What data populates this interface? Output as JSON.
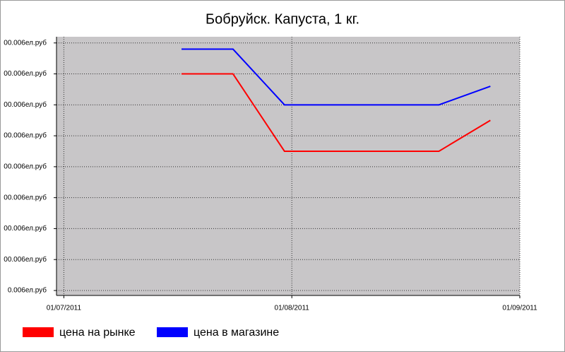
{
  "chart_data": {
    "type": "line",
    "title": "Бобруйск. Капуста, 1 кг.",
    "x": [
      "17/07/2011",
      "24/07/2011",
      "31/07/2011",
      "07/08/2011",
      "14/08/2011",
      "21/08/2011",
      "28/08/2011"
    ],
    "series": [
      {
        "name": "цена на рынке",
        "color": "#ff0000",
        "values": [
          7,
          7,
          4.5,
          4.5,
          4.5,
          4.5,
          5.5
        ]
      },
      {
        "name": "цена в магазине",
        "color": "#0000ff",
        "values": [
          7.8,
          7.8,
          6,
          6,
          6,
          6,
          6.6
        ]
      }
    ],
    "xlim": [
      "30/06/2011",
      "01/09/2011"
    ],
    "xticks": [
      "01/07/2011",
      "01/08/2011",
      "01/09/2011"
    ],
    "ylim": [
      -0.16,
      8.2
    ],
    "yticks": [
      {
        "value": 0,
        "label": "0.006ел.руб"
      },
      {
        "value": 1,
        "label": "00.006ел.руб"
      },
      {
        "value": 2,
        "label": "00.006ел.руб"
      },
      {
        "value": 3,
        "label": "00.006ел.руб"
      },
      {
        "value": 4,
        "label": "00.006ел.руб"
      },
      {
        "value": 5,
        "label": "00.006ел.руб"
      },
      {
        "value": 6,
        "label": "00.006ел.руб"
      },
      {
        "value": 7,
        "label": "00.006ел.руб"
      },
      {
        "value": 8,
        "label": "00.006ел.руб"
      }
    ],
    "grid": true,
    "legend": "bottom"
  }
}
